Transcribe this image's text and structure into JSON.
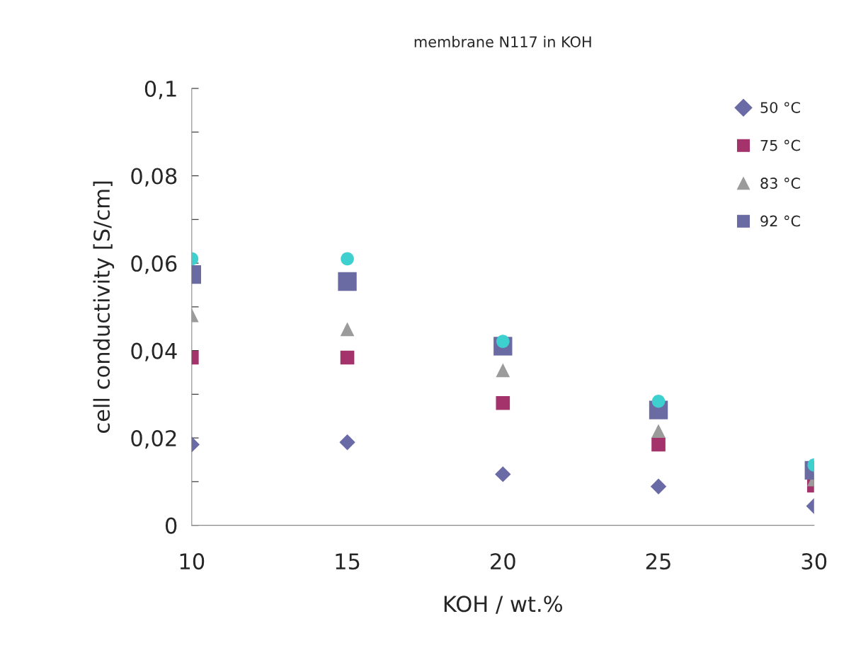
{
  "chart_data": {
    "type": "scatter",
    "title": "membrane N117 in KOH",
    "xlabel": "KOH / wt.%",
    "ylabel": "cell conductivity [S/cm]",
    "x": [
      10,
      15,
      20,
      25,
      30
    ],
    "xlim": [
      10,
      30
    ],
    "xticks": [
      10,
      15,
      20,
      25,
      30
    ],
    "ylim": [
      0,
      0.1
    ],
    "yticks": [
      {
        "value": 0,
        "label": "0"
      },
      {
        "value": 0.01,
        "label": null
      },
      {
        "value": 0.02,
        "label": "0,02"
      },
      {
        "value": 0.03,
        "label": null
      },
      {
        "value": 0.04,
        "label": "0,04"
      },
      {
        "value": 0.05,
        "label": null
      },
      {
        "value": 0.06,
        "label": "0,06"
      },
      {
        "value": 0.07,
        "label": null
      },
      {
        "value": 0.08,
        "label": "0,08"
      },
      {
        "value": 0.09,
        "label": null
      },
      {
        "value": 0.1,
        "label": "0,1"
      }
    ],
    "grid": false,
    "legend": "top right",
    "series": [
      {
        "name": "50 °C",
        "color": "#6a6aa6",
        "marker": "diamond",
        "values": [
          0.0185,
          0.019,
          0.0117,
          0.0089,
          0.0044
        ]
      },
      {
        "name": "75 °C",
        "color": "#a3336a",
        "marker": "square",
        "values": [
          0.0384,
          0.0384,
          0.028,
          0.0185,
          0.0091
        ]
      },
      {
        "name": "83 °C",
        "color": "#9b9b9b",
        "marker": "triangle",
        "values": [
          0.0481,
          0.0449,
          0.0355,
          0.0216,
          0.0105
        ]
      },
      {
        "name": "92 °C",
        "color": "#6b6ba3",
        "marker": "square",
        "values": [
          0.0574,
          0.0558,
          0.041,
          0.0264,
          0.0126
        ]
      },
      {
        "color": "#3ecfcf",
        "marker": "circle",
        "values": [
          0.061,
          0.061,
          0.0421,
          0.0284,
          0.0138
        ]
      }
    ]
  }
}
